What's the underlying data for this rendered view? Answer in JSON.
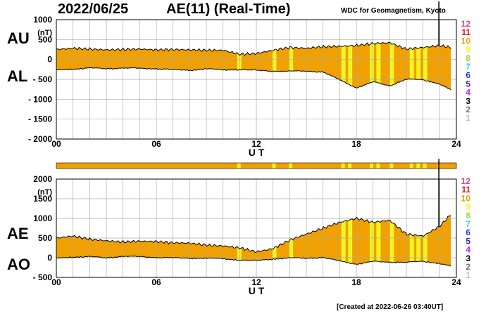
{
  "header": {
    "date": "2022/06/25",
    "title": "AE(11) (Real-Time)",
    "source": "WDC for Geomagnetism, Kyoto"
  },
  "footer": {
    "created": "[Created at 2022-06-26 03:40UT]"
  },
  "legend": [
    {
      "label": "12",
      "color": "#e0409c"
    },
    {
      "label": "11",
      "color": "#e01818"
    },
    {
      "label": "10",
      "color": "#f0a000"
    },
    {
      "label": "9",
      "color": "#f4f420"
    },
    {
      "label": "8",
      "color": "#90e040"
    },
    {
      "label": "7",
      "color": "#30d0e8"
    },
    {
      "label": "6",
      "color": "#2040e0"
    },
    {
      "label": "5",
      "color": "#4020b0"
    },
    {
      "label": "4",
      "color": "#c020e0"
    },
    {
      "label": "3",
      "color": "#000000"
    },
    {
      "label": "2",
      "color": "#707070"
    },
    {
      "label": "1",
      "color": "#c0c0c0"
    }
  ],
  "status_bar": {
    "base_color": "#f0a000",
    "highlight_color": "#f4f420",
    "highlight_hours": [
      10.85,
      12.95,
      13.95,
      17.1,
      17.5,
      18.8,
      19.2,
      20.0,
      21.2,
      21.6,
      22.0
    ]
  },
  "chart_data": [
    {
      "type": "area",
      "panel": "AU/AL",
      "labels_left": [
        "AU",
        "AL"
      ],
      "ylabel": "(nT)",
      "xlabel": "U T",
      "xlim": [
        0,
        24
      ],
      "ylim": [
        -2000,
        1000
      ],
      "y_ticks": [
        "1000",
        "500",
        "0",
        "- 500",
        "- 1000",
        "- 1500",
        "- 2000"
      ],
      "x_ticks": [
        "00",
        "06",
        "12",
        "18",
        "24"
      ],
      "grid": true,
      "x": [
        0,
        1,
        2,
        3,
        4,
        5,
        6,
        7,
        8,
        9,
        10,
        11,
        12,
        13,
        14,
        15,
        16,
        17,
        18,
        19,
        20,
        21,
        22,
        23,
        23.67
      ],
      "series": [
        {
          "name": "AU",
          "values": [
            250,
            280,
            260,
            240,
            250,
            260,
            240,
            250,
            240,
            230,
            230,
            130,
            150,
            230,
            300,
            280,
            320,
            330,
            350,
            400,
            420,
            260,
            300,
            350,
            300
          ]
        },
        {
          "name": "AL",
          "values": [
            -250,
            -230,
            -200,
            -220,
            -200,
            -210,
            -220,
            -240,
            -260,
            -220,
            -250,
            -240,
            -260,
            -280,
            -280,
            -280,
            -300,
            -500,
            -700,
            -550,
            -650,
            -480,
            -500,
            -600,
            -750
          ]
        }
      ]
    },
    {
      "type": "area",
      "panel": "AE/AO",
      "labels_left": [
        "AE",
        "AO"
      ],
      "ylabel": "(nT)",
      "xlabel": "U T",
      "xlim": [
        0,
        24
      ],
      "ylim": [
        -500,
        2000
      ],
      "y_ticks": [
        "2000",
        "1500",
        "1000",
        "500",
        "0",
        "- 500"
      ],
      "x_ticks": [
        "00",
        "06",
        "12",
        "18",
        "24"
      ],
      "grid": true,
      "x": [
        0,
        1,
        2,
        3,
        4,
        5,
        6,
        7,
        8,
        9,
        10,
        11,
        12,
        13,
        14,
        15,
        16,
        17,
        18,
        19,
        20,
        21,
        22,
        23,
        23.67
      ],
      "series": [
        {
          "name": "AE",
          "values": [
            500,
            550,
            470,
            430,
            400,
            420,
            410,
            380,
            370,
            320,
            300,
            250,
            150,
            230,
            450,
            600,
            750,
            900,
            1000,
            900,
            950,
            600,
            550,
            800,
            1100
          ]
        },
        {
          "name": "AO",
          "values": [
            0,
            30,
            40,
            10,
            50,
            40,
            20,
            10,
            0,
            0,
            -10,
            -50,
            -60,
            -20,
            10,
            0,
            20,
            -70,
            -150,
            -80,
            -100,
            -100,
            -80,
            -130,
            -200
          ]
        }
      ]
    }
  ]
}
